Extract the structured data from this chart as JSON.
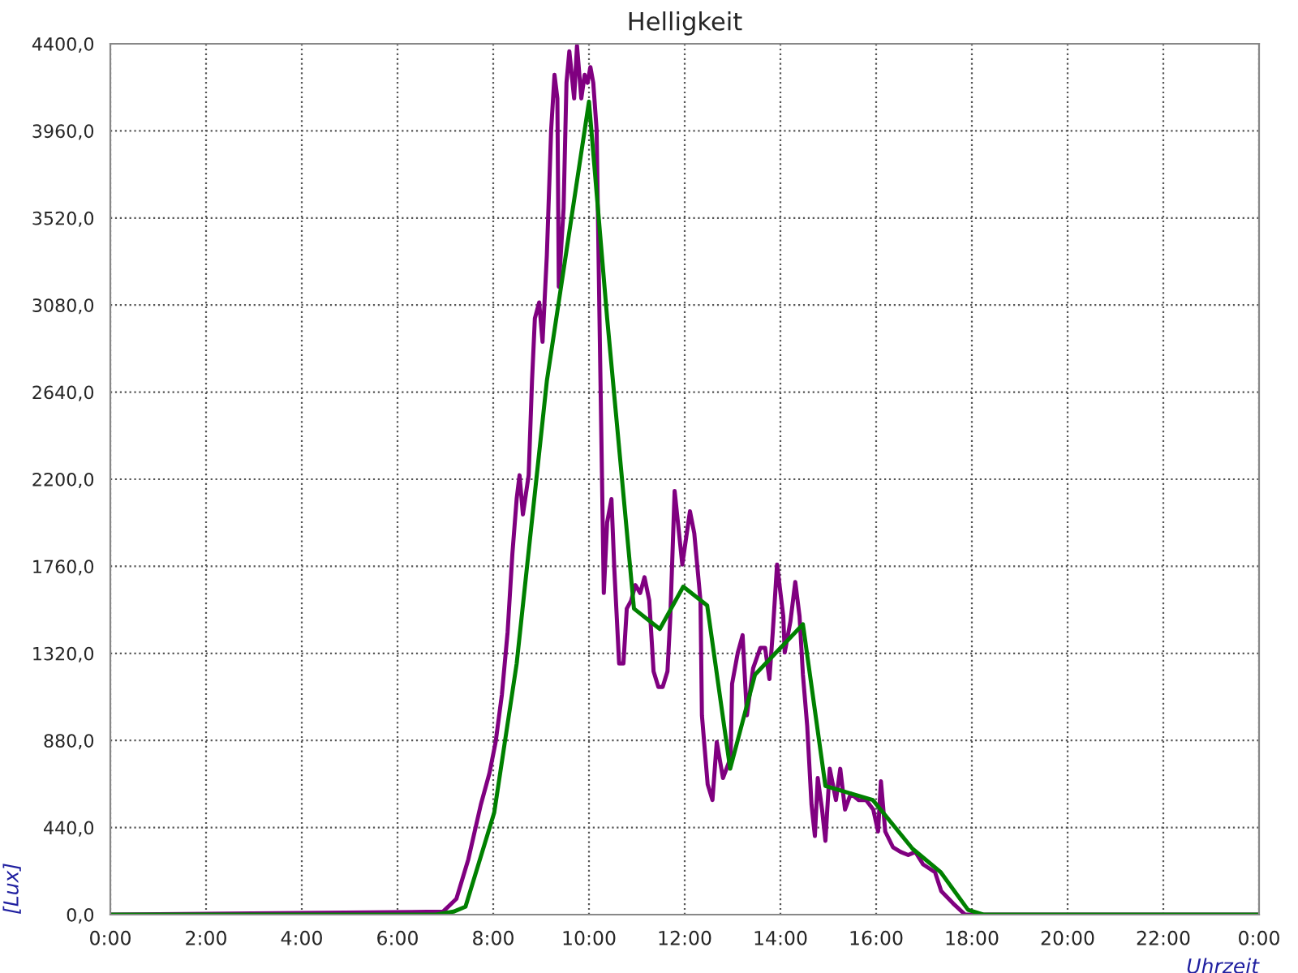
{
  "chart_data": {
    "type": "line",
    "title": "Helligkeit",
    "xlabel": "Uhrzeit",
    "ylabel": "[Lux]",
    "xlim": [
      0,
      24
    ],
    "ylim": [
      0,
      4400
    ],
    "xticks": [
      {
        "value": 0,
        "label": "0:00"
      },
      {
        "value": 2,
        "label": "2:00"
      },
      {
        "value": 4,
        "label": "4:00"
      },
      {
        "value": 6,
        "label": "6:00"
      },
      {
        "value": 8,
        "label": "8:00"
      },
      {
        "value": 10,
        "label": "10:00"
      },
      {
        "value": 12,
        "label": "12:00"
      },
      {
        "value": 14,
        "label": "14:00"
      },
      {
        "value": 16,
        "label": "16:00"
      },
      {
        "value": 18,
        "label": "18:00"
      },
      {
        "value": 20,
        "label": "20:00"
      },
      {
        "value": 22,
        "label": "22:00"
      },
      {
        "value": 24,
        "label": "0:00"
      }
    ],
    "yticks": [
      {
        "value": 0,
        "label": "0,0"
      },
      {
        "value": 440,
        "label": "440,0"
      },
      {
        "value": 880,
        "label": "880,0"
      },
      {
        "value": 1320,
        "label": "1320,0"
      },
      {
        "value": 1760,
        "label": "1760,0"
      },
      {
        "value": 2200,
        "label": "2200,0"
      },
      {
        "value": 2640,
        "label": "2640,0"
      },
      {
        "value": 3080,
        "label": "3080,0"
      },
      {
        "value": 3520,
        "label": "3520,0"
      },
      {
        "value": 3960,
        "label": "3960,0"
      },
      {
        "value": 4400,
        "label": "4400,0"
      }
    ],
    "grid": true,
    "line_style": "solid",
    "marker": "none",
    "series": [
      {
        "color": "#800080",
        "x": [
          0,
          6.95,
          7.23,
          7.48,
          7.74,
          7.92,
          8.05,
          8.18,
          8.3,
          8.4,
          8.49,
          8.55,
          8.62,
          8.74,
          8.81,
          8.87,
          8.96,
          9.03,
          9.12,
          9.21,
          9.28,
          9.34,
          9.37,
          9.47,
          9.53,
          9.59,
          9.69,
          9.75,
          9.84,
          9.91,
          9.97,
          10.03,
          10.09,
          10.16,
          10.22,
          10.31,
          10.38,
          10.47,
          10.53,
          10.63,
          10.72,
          10.79,
          10.88,
          10.97,
          11.07,
          11.16,
          11.26,
          11.35,
          11.45,
          11.54,
          11.64,
          11.7,
          11.79,
          11.95,
          12.11,
          12.2,
          12.33,
          12.36,
          12.48,
          12.58,
          12.67,
          12.8,
          12.96,
          12.99,
          13.11,
          13.21,
          13.3,
          13.43,
          13.58,
          13.68,
          13.77,
          13.84,
          13.93,
          14.06,
          14.09,
          14.21,
          14.31,
          14.4,
          14.47,
          14.56,
          14.65,
          14.72,
          14.78,
          14.87,
          14.94,
          15.03,
          15.16,
          15.25,
          15.35,
          15.47,
          15.63,
          15.79,
          15.94,
          16.04,
          16.1,
          16.19,
          16.35,
          16.51,
          16.67,
          16.82,
          16.98,
          17.23,
          17.36,
          17.61,
          17.86,
          24
        ],
        "values": [
          0,
          15,
          80,
          280,
          555,
          714,
          872,
          1110,
          1427,
          1824,
          2102,
          2220,
          2022,
          2220,
          2696,
          3013,
          3093,
          2894,
          3331,
          3965,
          4243,
          4124,
          3172,
          3569,
          4203,
          4362,
          4124,
          4390,
          4124,
          4243,
          4203,
          4282,
          4203,
          3965,
          3013,
          1625,
          1982,
          2100,
          1745,
          1269,
          1269,
          1546,
          1586,
          1665,
          1625,
          1705,
          1586,
          1229,
          1150,
          1150,
          1229,
          1507,
          2141,
          1769,
          2038,
          1927,
          1586,
          1007,
          658,
          579,
          872,
          690,
          793,
          1166,
          1324,
          1412,
          1007,
          1245,
          1348,
          1348,
          1190,
          1427,
          1769,
          1507,
          1324,
          1483,
          1681,
          1507,
          1213,
          952,
          555,
          397,
          690,
          531,
          373,
          737,
          579,
          737,
          531,
          611,
          579,
          579,
          531,
          420,
          674,
          420,
          341,
          317,
          301,
          317,
          254,
          214,
          119,
          56,
          0,
          0
        ]
      },
      {
        "color": "#008000",
        "x": [
          0,
          6.8,
          7.17,
          7.42,
          8.02,
          8.49,
          9.12,
          10.0,
          10.38,
          10.94,
          11.48,
          11.97,
          12.47,
          12.95,
          13.47,
          14.47,
          14.94,
          15.93,
          16.76,
          17.35,
          17.92,
          18.24,
          24
        ],
        "values": [
          0,
          0,
          15,
          40,
          515,
          1269,
          2696,
          4108,
          3013,
          1546,
          1443,
          1657,
          1562,
          737,
          1213,
          1467,
          650,
          579,
          333,
          214,
          24,
          0,
          0
        ]
      }
    ]
  }
}
